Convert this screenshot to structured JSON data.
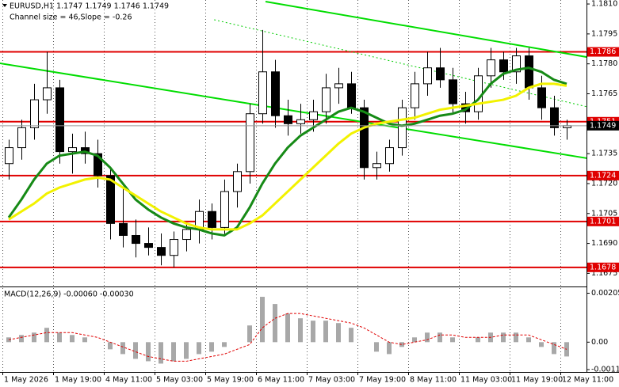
{
  "chart_data": {
    "type": "candlestick",
    "title": "EURUSD,H1  1.1747 1.1749 1.1746 1.1749",
    "subtitle": "Channel size = 46,Slope = -0.26",
    "categories": [
      "1 May 2026",
      null,
      null,
      null,
      "1 May 19:00",
      null,
      null,
      null,
      "4 May 11:00",
      null,
      null,
      null,
      "5 May 03:00",
      null,
      null,
      null,
      "5 May 19:00",
      null,
      null,
      null,
      "6 May 11:00",
      null,
      null,
      null,
      "7 May 03:00",
      null,
      null,
      null,
      "7 May 19:00",
      null,
      null,
      null,
      "8 May 11:00",
      null,
      null,
      null,
      "11 May 03:00",
      null,
      null,
      null,
      "11 May 19:00",
      null,
      null,
      null,
      "12 May 11:00"
    ],
    "open": [
      1.173,
      1.1738,
      1.1748,
      1.1762,
      1.1768,
      1.1736,
      1.1738,
      1.1735,
      1.1724,
      1.17,
      1.1694,
      1.169,
      1.1688,
      1.1684,
      1.1692,
      1.1697,
      1.1706,
      1.1698,
      1.1716,
      1.1726,
      1.1755,
      1.1776,
      1.1754,
      1.175,
      1.1752,
      1.1756,
      1.1768,
      1.177,
      1.1758,
      1.1728,
      1.173,
      1.1738,
      1.1758,
      1.177,
      1.1778,
      1.1772,
      1.176,
      1.1756,
      1.1774,
      1.1782,
      1.1776,
      1.1784,
      1.1768,
      1.1758,
      1.1748
    ],
    "high": [
      1.1742,
      1.1752,
      1.177,
      1.1786,
      1.1772,
      1.1745,
      1.1746,
      1.1742,
      1.1728,
      1.1718,
      1.1702,
      1.1698,
      1.1695,
      1.1696,
      1.17,
      1.1712,
      1.171,
      1.1722,
      1.173,
      1.176,
      1.1797,
      1.1782,
      1.1762,
      1.176,
      1.1762,
      1.1775,
      1.1778,
      1.1776,
      1.1762,
      1.1736,
      1.1742,
      1.1762,
      1.1776,
      1.1786,
      1.1788,
      1.1778,
      1.1766,
      1.1778,
      1.1788,
      1.1786,
      1.1788,
      1.1788,
      1.1774,
      1.1764,
      1.1752
    ],
    "low": [
      1.1722,
      1.1732,
      1.1742,
      1.1755,
      1.173,
      1.1725,
      1.173,
      1.1718,
      1.1692,
      1.1688,
      1.1683,
      1.1684,
      1.1679,
      1.1678,
      1.1686,
      1.169,
      1.1692,
      1.1694,
      1.1708,
      1.172,
      1.175,
      1.1748,
      1.1744,
      1.1745,
      1.1746,
      1.175,
      1.176,
      1.1755,
      1.1722,
      1.1722,
      1.1726,
      1.1734,
      1.1752,
      1.1764,
      1.1768,
      1.1755,
      1.175,
      1.1752,
      1.1768,
      1.1772,
      1.177,
      1.1762,
      1.1752,
      1.1744,
      1.1742
    ],
    "close": [
      1.1738,
      1.1748,
      1.1762,
      1.1768,
      1.1736,
      1.1738,
      1.1735,
      1.1724,
      1.17,
      1.1694,
      1.169,
      1.1688,
      1.1684,
      1.1692,
      1.1697,
      1.1706,
      1.1698,
      1.1716,
      1.1726,
      1.1755,
      1.1776,
      1.1754,
      1.175,
      1.1752,
      1.1756,
      1.1768,
      1.177,
      1.1758,
      1.1728,
      1.173,
      1.1738,
      1.1758,
      1.177,
      1.1778,
      1.1772,
      1.176,
      1.1756,
      1.1774,
      1.1782,
      1.1776,
      1.1784,
      1.1768,
      1.1758,
      1.1748,
      1.1749
    ],
    "moving_averages": [
      {
        "color": "#168a16",
        "values": [
          1.1703,
          1.1712,
          1.1722,
          1.173,
          1.1734,
          1.1735,
          1.1736,
          1.1734,
          1.1728,
          1.172,
          1.1712,
          1.1707,
          1.1703,
          1.17,
          1.1698,
          1.1697,
          1.1695,
          1.1694,
          1.1698,
          1.1708,
          1.172,
          1.173,
          1.1738,
          1.1744,
          1.1748,
          1.1752,
          1.1756,
          1.1758,
          1.1756,
          1.1753,
          1.175,
          1.1749,
          1.175,
          1.1752,
          1.1754,
          1.1755,
          1.1757,
          1.1762,
          1.177,
          1.1775,
          1.1777,
          1.1778,
          1.1776,
          1.1772,
          1.177
        ]
      },
      {
        "color": "#f2f200",
        "values": [
          1.1702,
          1.1706,
          1.171,
          1.1715,
          1.1718,
          1.172,
          1.1722,
          1.1723,
          1.1722,
          1.1718,
          1.1714,
          1.171,
          1.1706,
          1.1703,
          1.17,
          1.1698,
          1.1697,
          1.1697,
          1.1697,
          1.17,
          1.1704,
          1.171,
          1.1716,
          1.1722,
          1.1728,
          1.1734,
          1.174,
          1.1745,
          1.1748,
          1.175,
          1.1751,
          1.1752,
          1.1753,
          1.1755,
          1.1757,
          1.1758,
          1.1759,
          1.176,
          1.1761,
          1.1762,
          1.1764,
          1.1768,
          1.177,
          1.177,
          1.1769
        ]
      }
    ],
    "trendlines": [
      {
        "color": "#00dd00",
        "dashed": false,
        "x": [
          -0.7,
          45.6
        ],
        "y": [
          1.17803,
          1.17327
        ]
      },
      {
        "color": "#00dd00",
        "dashed": false,
        "x": [
          20.25,
          45.6
        ],
        "y": [
          1.18112,
          1.17834
        ]
      },
      {
        "color": "#00cc00",
        "dashed": true,
        "x": [
          16.2,
          45.6
        ],
        "y": [
          1.18021,
          1.17585
        ]
      }
    ],
    "levels": [
      1.1786,
      1.1751,
      1.1724,
      1.1701,
      1.1678
    ],
    "level_color": "#e00000",
    "last_price": 1.1749,
    "ylim": [
      1.167,
      1.1812
    ],
    "yticks": [
      {
        "value": 1.181,
        "label": "1.1810"
      },
      1.1795,
      {
        "value": 1.178,
        "label": "1.1780"
      },
      1.1765,
      {
        "value": 1.175,
        "label": "1.1750"
      },
      1.1735,
      {
        "value": 1.172,
        "label": "1.1720"
      },
      1.1705,
      {
        "value": 1.169,
        "label": "1.1690"
      },
      1.1675
    ],
    "macd": {
      "title": "MACD(12,26,9) -0.00060 -0.00030",
      "histogram": [
        0.0002,
        0.0003,
        0.0004,
        0.0006,
        0.0004,
        0.0003,
        0.0002,
        0.0,
        -0.0003,
        -0.0005,
        -0.0007,
        -0.0008,
        -0.0009,
        -0.0008,
        -0.0007,
        -0.0005,
        -0.0004,
        -0.0002,
        0.0,
        0.0007,
        0.0019,
        0.0016,
        0.0012,
        0.001,
        0.0009,
        0.0009,
        0.0008,
        0.0006,
        0.0,
        -0.0004,
        -0.0005,
        -0.0002,
        0.0002,
        0.0004,
        0.0004,
        0.0002,
        0.0,
        0.0002,
        0.0004,
        0.0004,
        0.0004,
        0.0002,
        -0.0002,
        -0.0005,
        -0.0006
      ],
      "histogram_color": "#a8a8a8",
      "signal": [
        0.0001,
        0.0002,
        0.0003,
        0.0004,
        0.0004,
        0.0004,
        0.0003,
        0.0002,
        0.0,
        -0.0002,
        -0.0004,
        -0.0006,
        -0.0007,
        -0.0008,
        -0.0008,
        -0.0007,
        -0.0006,
        -0.0005,
        -0.0003,
        -0.0001,
        0.0006,
        0.001,
        0.0012,
        0.0012,
        0.0011,
        0.001,
        0.0009,
        0.0008,
        0.0006,
        0.0003,
        0.0,
        -0.0001,
        0.0,
        0.0001,
        0.0003,
        0.0003,
        0.0002,
        0.0002,
        0.0002,
        0.0003,
        0.0003,
        0.0003,
        0.0001,
        -0.0001,
        -0.0003
      ],
      "signal_color": "#e00000",
      "ylim": [
        -0.00125,
        0.0023
      ],
      "yticks": [
        0.00205,
        {
          "value": 0,
          "label": "0.00"
        },
        -0.00115
      ]
    }
  }
}
